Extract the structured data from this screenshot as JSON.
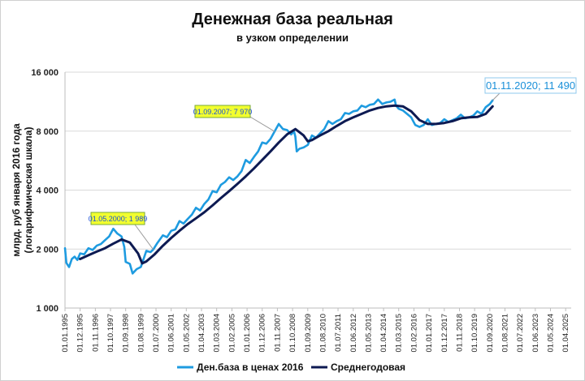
{
  "chart_data": {
    "type": "line",
    "title": "Денежная база реальная",
    "subtitle": "в узком определении",
    "ylabel": "млрд. руб января 2016 года\n(логарифмическая шкала)",
    "yscale": "log",
    "ylim": [
      1000,
      16000
    ],
    "yticks": [
      1000,
      2000,
      4000,
      8000,
      16000
    ],
    "ytick_labels": [
      "1 000",
      "2 000",
      "4 000",
      "8 000",
      "16 000"
    ],
    "xlim": [
      "1995-01-01",
      "2025-08-01"
    ],
    "xtick_labels": [
      "01.01.1995",
      "01.12.1995",
      "01.11.1996",
      "01.10.1997",
      "01.09.1998",
      "01.08.1999",
      "01.07.2000",
      "01.06.2001",
      "01.05.2002",
      "01.04.2003",
      "01.03.2004",
      "01.02.2005",
      "01.01.2006",
      "01.12.2006",
      "01.11.2007",
      "01.10.2008",
      "01.09.2009",
      "01.08.2010",
      "01.07.2011",
      "01.06.2012",
      "01.05.2013",
      "01.04.2014",
      "01.03.2015",
      "01.02.2016",
      "01.01.2017",
      "01.12.2017",
      "01.11.2018",
      "01.10.2019",
      "01.09.2020",
      "01.08.2021",
      "01.07.2022",
      "01.06.2023",
      "01.05.2024",
      "01.04.2025"
    ],
    "grid": true,
    "legend_position": "bottom",
    "series": [
      {
        "name": "Ден.база в ценах 2016",
        "color": "#1e9be0",
        "x": [
          "1995-01-01",
          "1995-02-01",
          "1995-04-01",
          "1995-06-01",
          "1995-08-01",
          "1995-10-01",
          "1995-12-01",
          "1996-03-01",
          "1996-06-01",
          "1996-09-01",
          "1996-12-01",
          "1997-03-01",
          "1997-06-01",
          "1997-09-01",
          "1997-12-01",
          "1998-03-01",
          "1998-06-01",
          "1998-08-01",
          "1998-09-01",
          "1998-12-01",
          "1999-02-01",
          "1999-05-01",
          "1999-08-01",
          "1999-10-01",
          "1999-12-01",
          "2000-03-01",
          "2000-05-01",
          "2000-08-01",
          "2000-12-01",
          "2001-03-01",
          "2001-06-01",
          "2001-09-01",
          "2001-12-01",
          "2002-03-01",
          "2002-06-01",
          "2002-09-01",
          "2002-12-01",
          "2003-03-01",
          "2003-06-01",
          "2003-09-01",
          "2003-12-01",
          "2004-03-01",
          "2004-06-01",
          "2004-09-01",
          "2004-12-01",
          "2005-03-01",
          "2005-06-01",
          "2005-09-01",
          "2005-12-01",
          "2006-03-01",
          "2006-06-01",
          "2006-09-01",
          "2006-12-01",
          "2007-03-01",
          "2007-06-01",
          "2007-09-01",
          "2007-12-01",
          "2008-03-01",
          "2008-06-01",
          "2008-09-01",
          "2008-11-01",
          "2008-12-01",
          "2009-01-01",
          "2009-03-01",
          "2009-06-01",
          "2009-09-01",
          "2009-12-01",
          "2010-03-01",
          "2010-06-01",
          "2010-09-01",
          "2010-12-01",
          "2011-03-01",
          "2011-06-01",
          "2011-09-01",
          "2011-12-01",
          "2012-03-01",
          "2012-06-01",
          "2012-09-01",
          "2012-12-01",
          "2013-03-01",
          "2013-06-01",
          "2013-09-01",
          "2013-12-01",
          "2014-03-01",
          "2014-06-01",
          "2014-09-01",
          "2014-12-01",
          "2015-01-01",
          "2015-03-01",
          "2015-06-01",
          "2015-09-01",
          "2015-12-01",
          "2016-03-01",
          "2016-06-01",
          "2016-09-01",
          "2016-12-01",
          "2017-03-01",
          "2017-06-01",
          "2017-09-01",
          "2017-12-01",
          "2018-03-01",
          "2018-06-01",
          "2018-09-01",
          "2018-12-01",
          "2019-03-01",
          "2019-06-01",
          "2019-09-01",
          "2019-12-01",
          "2020-03-01",
          "2020-06-01",
          "2020-09-01",
          "2020-11-01"
        ],
        "y": [
          2020,
          1700,
          1620,
          1780,
          1830,
          1760,
          1900,
          1880,
          2020,
          1980,
          2080,
          2120,
          2220,
          2320,
          2540,
          2400,
          2320,
          2050,
          1720,
          1680,
          1500,
          1580,
          1620,
          1780,
          1960,
          1930,
          1989,
          2150,
          2350,
          2300,
          2480,
          2520,
          2780,
          2700,
          2850,
          3000,
          3250,
          3150,
          3400,
          3580,
          3950,
          3900,
          4250,
          4400,
          4650,
          4500,
          4700,
          5000,
          5700,
          5500,
          5900,
          6300,
          7000,
          6900,
          7300,
          7970,
          8700,
          8200,
          8100,
          7700,
          8000,
          7500,
          6300,
          6500,
          6600,
          6800,
          7600,
          7400,
          7800,
          8200,
          9000,
          8700,
          9000,
          9200,
          9900,
          9800,
          10100,
          10200,
          10800,
          10600,
          10900,
          11000,
          11600,
          11000,
          11200,
          11300,
          11600,
          10800,
          10400,
          10200,
          9800,
          9400,
          8600,
          8400,
          8600,
          9200,
          8600,
          8700,
          8800,
          9200,
          8900,
          9100,
          9300,
          9700,
          9300,
          9400,
          9600,
          10100,
          9800,
          10600,
          11000,
          11490
        ]
      },
      {
        "name": "Среднегодовая",
        "color": "#0d1a52",
        "x": [
          "1995-12-01",
          "1996-06-01",
          "1996-12-01",
          "1997-06-01",
          "1997-12-01",
          "1998-06-01",
          "1998-12-01",
          "1999-06-01",
          "1999-09-01",
          "1999-12-01",
          "2000-06-01",
          "2000-12-01",
          "2001-06-01",
          "2001-12-01",
          "2002-06-01",
          "2002-12-01",
          "2003-06-01",
          "2003-12-01",
          "2004-06-01",
          "2004-12-01",
          "2005-06-01",
          "2005-12-01",
          "2006-06-01",
          "2006-12-01",
          "2007-06-01",
          "2007-12-01",
          "2008-06-01",
          "2008-12-01",
          "2009-06-01",
          "2009-09-01",
          "2009-12-01",
          "2010-06-01",
          "2010-12-01",
          "2011-06-01",
          "2011-12-01",
          "2012-06-01",
          "2012-12-01",
          "2013-06-01",
          "2013-12-01",
          "2014-06-01",
          "2014-12-01",
          "2015-06-01",
          "2015-12-01",
          "2016-06-01",
          "2016-12-01",
          "2017-06-01",
          "2017-12-01",
          "2018-06-01",
          "2018-12-01",
          "2019-06-01",
          "2019-12-01",
          "2020-06-01",
          "2020-11-01"
        ],
        "y": [
          1780,
          1860,
          1940,
          2020,
          2130,
          2240,
          2160,
          1900,
          1690,
          1730,
          1880,
          2080,
          2280,
          2480,
          2680,
          2870,
          3080,
          3340,
          3640,
          3950,
          4300,
          4700,
          5160,
          5700,
          6300,
          7000,
          7700,
          8200,
          7600,
          7100,
          7200,
          7600,
          8000,
          8500,
          9000,
          9400,
          9800,
          10200,
          10500,
          10700,
          10800,
          10700,
          10100,
          9100,
          8700,
          8700,
          8800,
          9000,
          9300,
          9400,
          9450,
          9800,
          10700
        ]
      }
    ],
    "annotations": [
      {
        "text": "01.05.2000;  1 989",
        "x": "2000-05-01",
        "y": 1989
      },
      {
        "text": "01.09.2007;  7 970",
        "x": "2007-09-01",
        "y": 7970
      },
      {
        "text": "01.11.2020;  11 490",
        "x": "2020-11-01",
        "y": 11490
      }
    ]
  }
}
